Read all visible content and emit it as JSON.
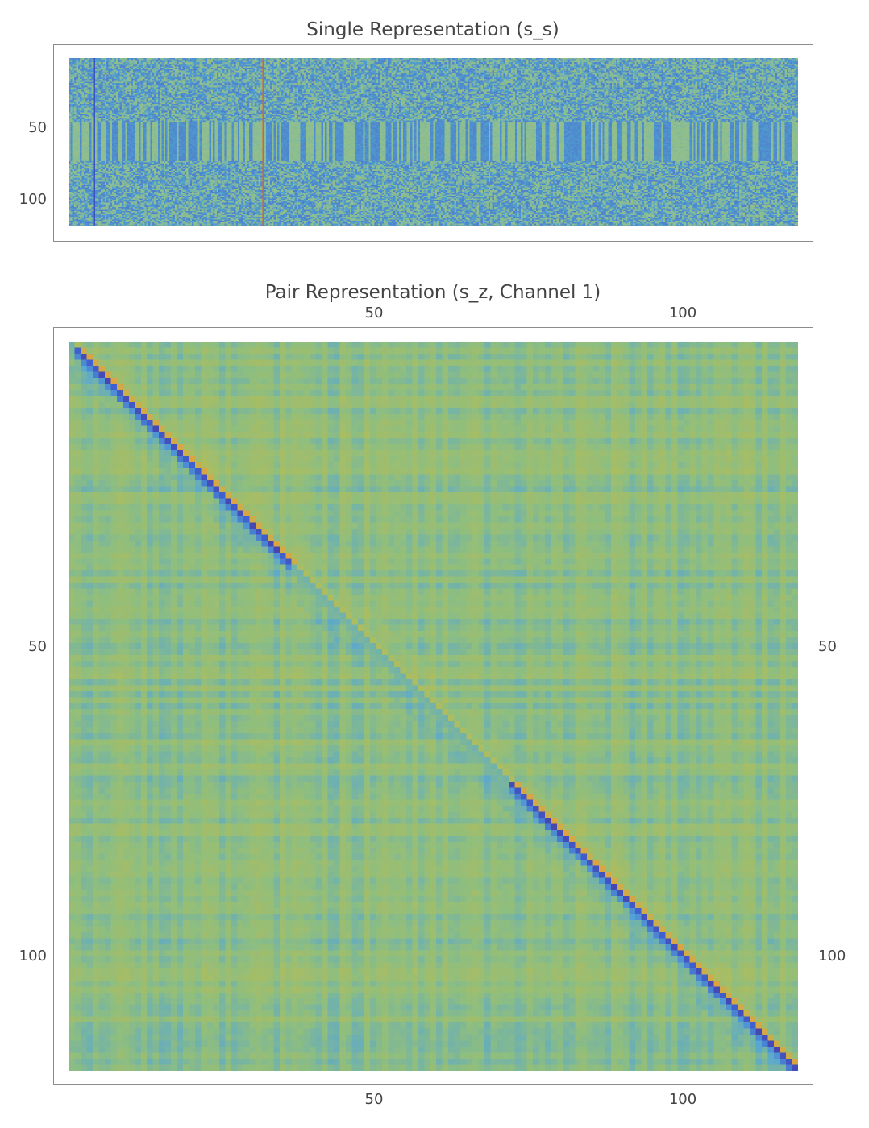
{
  "chart_data": [
    {
      "type": "heatmap",
      "title": "Single Representation (s_s)",
      "rows": 121,
      "columns": 384,
      "y_ticks": [
        "50",
        "100"
      ],
      "x_ticks": [],
      "colormap": [
        "#4f5fc8",
        "#4f9fd0",
        "#8fbf8f",
        "#b8ba52",
        "#e09040",
        "#d03a30"
      ],
      "highlighted_columns": [
        {
          "index": 13,
          "color": "#3a55c0"
        },
        {
          "index": 102,
          "color": "#e0602a"
        }
      ]
    },
    {
      "type": "heatmap",
      "title": "Pair Representation (s_z, Channel 1)",
      "rows": 121,
      "columns": 121,
      "x_ticks_top": [
        "50",
        "100"
      ],
      "x_ticks_bottom": [
        "50",
        "100"
      ],
      "y_ticks_left": [
        "50",
        "100"
      ],
      "y_ticks_right": [
        "50",
        "100"
      ],
      "colormap": [
        "#4a3aa0",
        "#3f63d0",
        "#55a6d6",
        "#8fbe7e",
        "#b6bc55",
        "#e0a040",
        "#d43a30"
      ],
      "strong_diagonal_ranges": [
        [
          1,
          36
        ],
        [
          73,
          121
        ]
      ]
    }
  ]
}
